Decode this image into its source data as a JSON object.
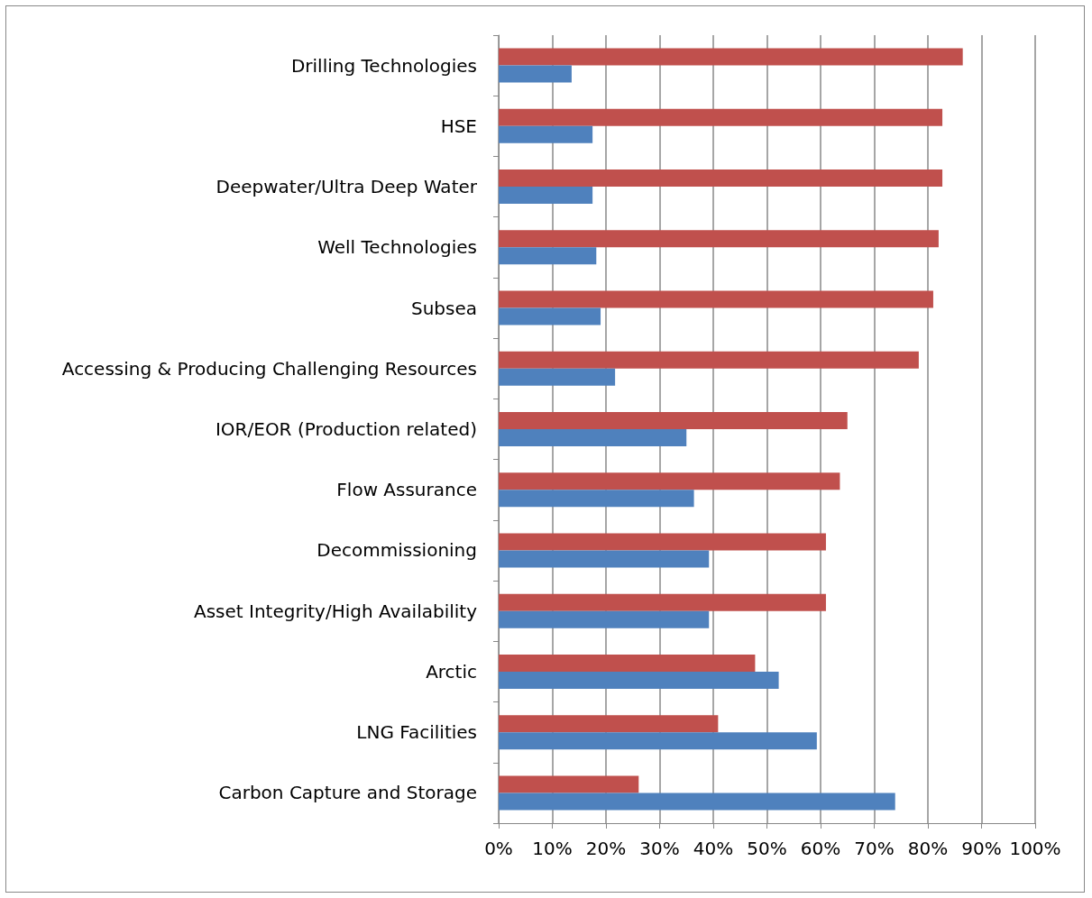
{
  "chart_data": {
    "type": "bar",
    "orientation": "horizontal",
    "categories": [
      "Drilling Technologies",
      "HSE",
      "Deepwater/Ultra Deep Water",
      "Well Technologies",
      "Subsea",
      "Accessing & Producing Challenging Resources",
      "IOR/EOR (Production related)",
      "Flow Assurance",
      "Decommissioning",
      "Asset Integrity/High Availability",
      "Arctic",
      "LNG Facilities",
      "Carbon Capture and Storage"
    ],
    "series": [
      {
        "color": "#c0504d",
        "values": [
          86.5,
          82.7,
          82.7,
          82,
          81,
          78.3,
          65,
          63.6,
          61,
          61,
          47.8,
          40.9,
          26.1
        ]
      },
      {
        "color": "#4f81bd",
        "values": [
          13.6,
          17.5,
          17.5,
          18.2,
          19,
          21.7,
          35,
          36.4,
          39.2,
          39.2,
          52.2,
          59.3,
          73.9
        ]
      }
    ],
    "xlim": [
      0,
      100
    ],
    "xticks": [
      {
        "value": 0,
        "label": "0%"
      },
      {
        "value": 10,
        "label": "10%"
      },
      {
        "value": 20,
        "label": "20%"
      },
      {
        "value": 30,
        "label": "30%"
      },
      {
        "value": 40,
        "label": "40%"
      },
      {
        "value": 50,
        "label": "50%"
      },
      {
        "value": 60,
        "label": "60%"
      },
      {
        "value": 70,
        "label": "70%"
      },
      {
        "value": 80,
        "label": "80%"
      },
      {
        "value": 90,
        "label": "90%"
      },
      {
        "value": 100,
        "label": "100%"
      }
    ],
    "grid": "x"
  }
}
